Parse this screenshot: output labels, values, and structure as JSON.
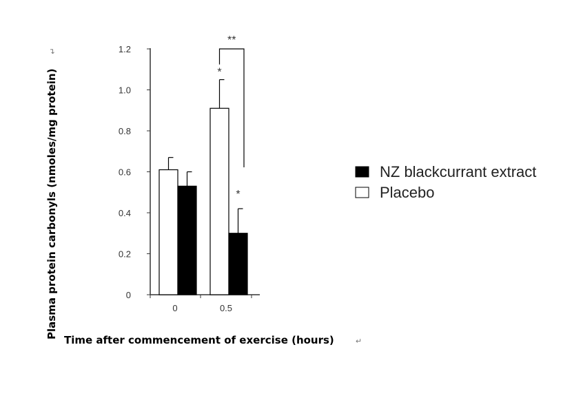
{
  "chart_data": {
    "type": "bar",
    "categories": [
      "0",
      "0.5"
    ],
    "series": [
      {
        "name": "Placebo",
        "values": [
          0.61,
          0.91
        ],
        "errors": [
          0.06,
          0.14
        ],
        "color": "#ffffff"
      },
      {
        "name": "NZ blackcurrant extract",
        "values": [
          0.53,
          0.3
        ],
        "errors": [
          0.07,
          0.12
        ],
        "color": "#000000"
      }
    ],
    "xlabel": "Time after commencement of exercise (hours)",
    "ylabel": "Plasma protein carbonyls (nmoles/mg protein)",
    "ylim": [
      0,
      1.2
    ],
    "yticks": [
      "0",
      "0.2",
      "0.4",
      "0.6",
      "0.8",
      "1.0",
      "1.2"
    ],
    "legend": {
      "placement": "right",
      "entries": [
        {
          "label": "NZ blackcurrant extract",
          "color": "#000000"
        },
        {
          "label": "Placebo",
          "color": "#ffffff"
        }
      ]
    },
    "annotations": [
      {
        "text": "*",
        "target": "Placebo at 0.5"
      },
      {
        "text": "*",
        "target": "NZ blackcurrant extract at 0.5"
      },
      {
        "text": "**",
        "target": "Placebo vs NZ blackcurrant extract at 0.5"
      }
    ],
    "para_mark": "↵",
    "grid": false
  }
}
